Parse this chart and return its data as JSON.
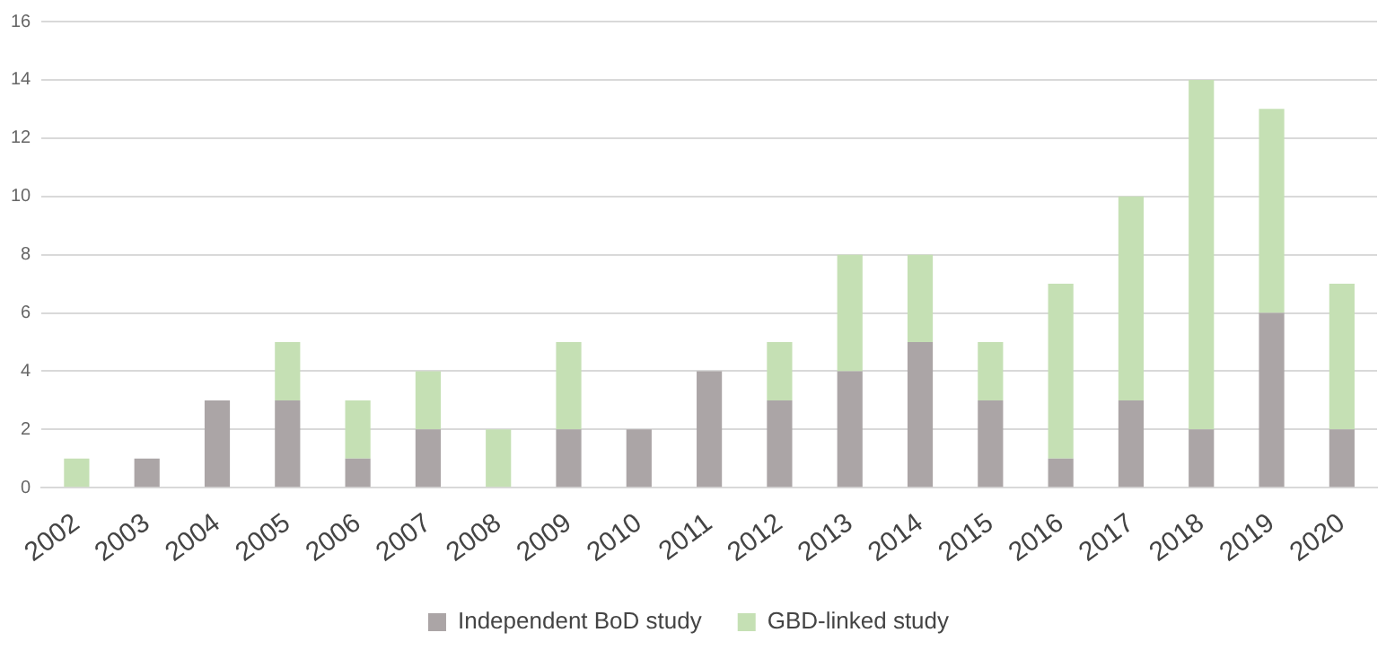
{
  "chart_data": {
    "type": "bar",
    "stacked": true,
    "categories": [
      "2002",
      "2003",
      "2004",
      "2005",
      "2006",
      "2007",
      "2008",
      "2009",
      "2010",
      "2011",
      "2012",
      "2013",
      "2014",
      "2015",
      "2016",
      "2017",
      "2018",
      "2019",
      "2020"
    ],
    "series": [
      {
        "name": "Independent BoD study",
        "color": "#aba5a6",
        "values": [
          0,
          1,
          3,
          3,
          1,
          2,
          0,
          2,
          2,
          4,
          3,
          4,
          5,
          3,
          1,
          3,
          2,
          6,
          2
        ]
      },
      {
        "name": "GBD-linked study",
        "color": "#c5e0b4",
        "values": [
          1,
          0,
          0,
          2,
          2,
          2,
          2,
          3,
          0,
          0,
          2,
          4,
          3,
          2,
          6,
          7,
          12,
          7,
          5
        ]
      }
    ],
    "ylim": [
      0,
      16
    ],
    "yticks": [
      0,
      2,
      4,
      6,
      8,
      10,
      12,
      14,
      16
    ],
    "grid": "y",
    "legend": "bottom"
  }
}
